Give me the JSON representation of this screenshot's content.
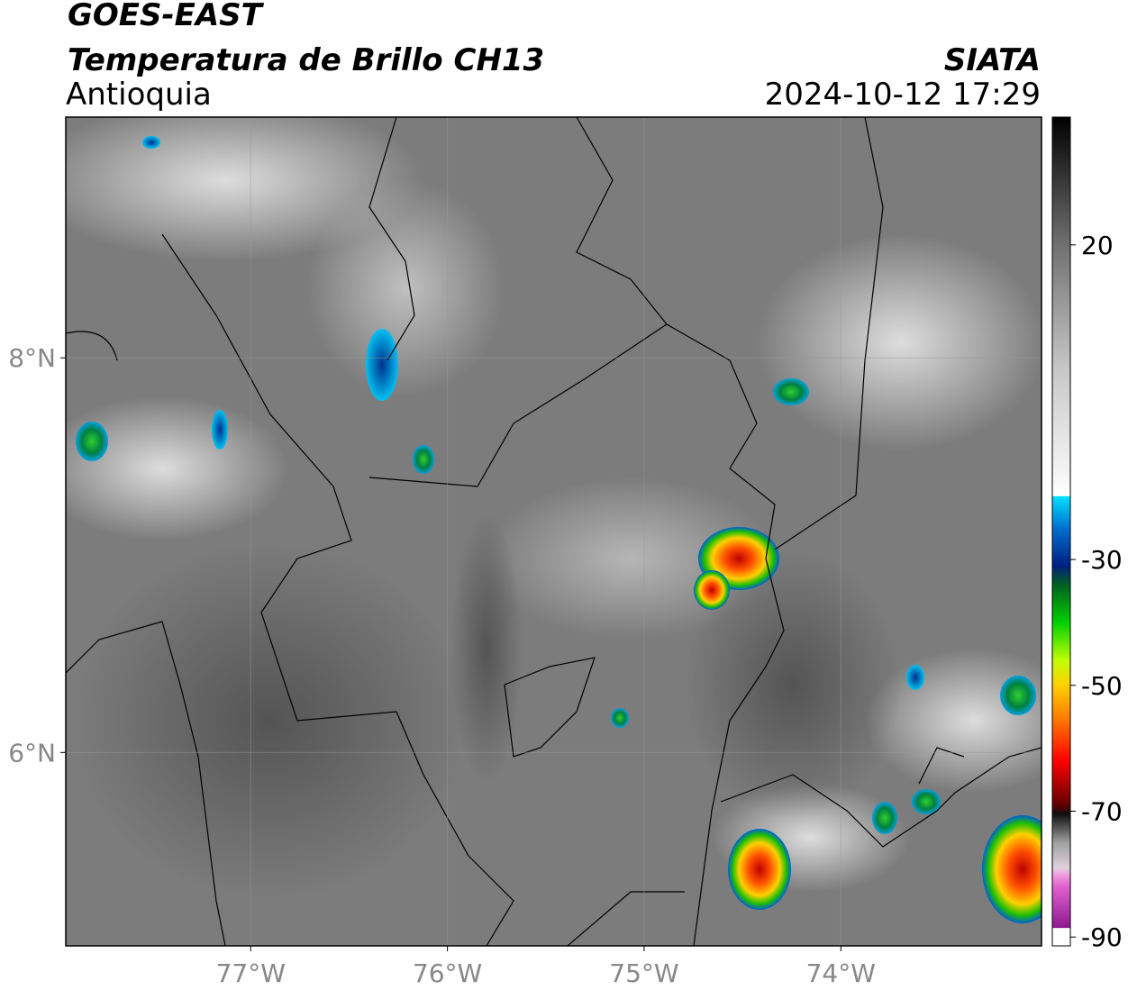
{
  "header": {
    "title": "GOES-EAST",
    "subtitle": "Temperatura de Brillo CH13",
    "region": "Antioquia",
    "source": "SIATA",
    "datetime": "2024-10-12 17:29"
  },
  "map": {
    "xlim": [
      -77.94,
      -72.98
    ],
    "ylim": [
      5.02,
      9.22
    ],
    "xticks": [
      {
        "value": -77,
        "label": "77°W"
      },
      {
        "value": -76,
        "label": "76°W"
      },
      {
        "value": -75,
        "label": "75°W"
      },
      {
        "value": -74,
        "label": "74°W"
      }
    ],
    "yticks": [
      {
        "value": 6,
        "label": "6°N"
      },
      {
        "value": 8,
        "label": "8°N"
      }
    ],
    "grid": true
  },
  "colorbar": {
    "clim": [
      -91.4,
      40.3
    ],
    "ticks": [
      20,
      -30,
      -50,
      -70,
      -90
    ],
    "stops": [
      {
        "value": -91.4,
        "color": "#ffffff"
      },
      {
        "value": -88.6,
        "color": "#ffffff"
      },
      {
        "value": -88.5,
        "color": "#8e1a8e"
      },
      {
        "value": -82,
        "color": "#e060d0"
      },
      {
        "value": -80,
        "color": "#f0a0e0"
      },
      {
        "value": -79,
        "color": "#e0d0dc"
      },
      {
        "value": -75,
        "color": "#a0a0a0"
      },
      {
        "value": -70.5,
        "color": "#101010"
      },
      {
        "value": -69,
        "color": "#600000"
      },
      {
        "value": -62,
        "color": "#ff0000"
      },
      {
        "value": -55,
        "color": "#ff8000"
      },
      {
        "value": -50,
        "color": "#ffd000"
      },
      {
        "value": -46,
        "color": "#c0ff00"
      },
      {
        "value": -40,
        "color": "#00d000"
      },
      {
        "value": -34,
        "color": "#006020"
      },
      {
        "value": -31,
        "color": "#002080"
      },
      {
        "value": -25,
        "color": "#0070d0"
      },
      {
        "value": -20,
        "color": "#00e0ff"
      },
      {
        "value": -19.9,
        "color": "#ffffff"
      },
      {
        "value": 0,
        "color": "#c8c8c8"
      },
      {
        "value": 20,
        "color": "#707070"
      },
      {
        "value": 40.3,
        "color": "#000000"
      }
    ]
  }
}
